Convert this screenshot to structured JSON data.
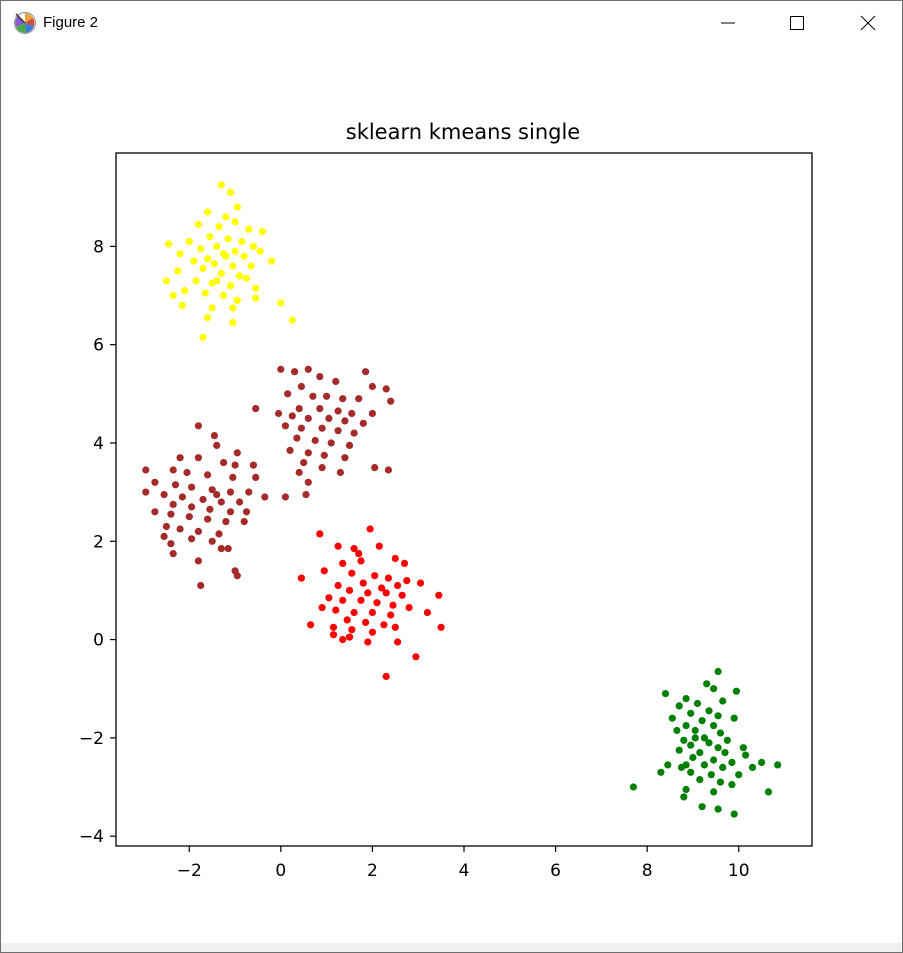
{
  "window": {
    "title": "Figure 2",
    "icons": {
      "app": "matplotlib-figure-icon",
      "minimize": "minimize-icon",
      "maximize": "maximize-icon",
      "close": "close-icon"
    }
  },
  "chart_data": {
    "type": "scatter",
    "title": "sklearn kmeans single",
    "xlabel": "",
    "ylabel": "",
    "xlim": [
      -3.6,
      11.6
    ],
    "ylim": [
      -4.2,
      9.9
    ],
    "xticks": [
      -2,
      0,
      2,
      4,
      6,
      8,
      10
    ],
    "xtick_labels": [
      "−2",
      "0",
      "2",
      "4",
      "6",
      "8",
      "10"
    ],
    "yticks": [
      -4,
      -2,
      0,
      2,
      4,
      6,
      8
    ],
    "ytick_labels": [
      "−4",
      "−2",
      "0",
      "2",
      "4",
      "6",
      "8"
    ],
    "grid": false,
    "legend": "none",
    "series": [
      {
        "color": "#ffff00",
        "points": [
          [
            -1.3,
            9.25
          ],
          [
            -1.1,
            9.1
          ],
          [
            -0.95,
            8.8
          ],
          [
            -1.6,
            8.7
          ],
          [
            -1.2,
            8.6
          ],
          [
            -1.0,
            8.5
          ],
          [
            -1.8,
            8.45
          ],
          [
            -1.35,
            8.4
          ],
          [
            -0.7,
            8.35
          ],
          [
            -0.4,
            8.3
          ],
          [
            -1.55,
            8.2
          ],
          [
            -1.15,
            8.15
          ],
          [
            -0.85,
            8.1
          ],
          [
            -2.0,
            8.1
          ],
          [
            -2.45,
            8.05
          ],
          [
            -1.4,
            8.0
          ],
          [
            -0.6,
            8.0
          ],
          [
            -1.75,
            7.95
          ],
          [
            -1.0,
            7.9
          ],
          [
            -0.45,
            7.9
          ],
          [
            -2.2,
            7.85
          ],
          [
            -1.25,
            7.85
          ],
          [
            -0.8,
            7.8
          ],
          [
            -1.6,
            7.75
          ],
          [
            -1.9,
            7.7
          ],
          [
            -0.2,
            7.7
          ],
          [
            -1.45,
            7.65
          ],
          [
            -1.05,
            7.6
          ],
          [
            -0.65,
            7.6
          ],
          [
            -1.7,
            7.55
          ],
          [
            -2.25,
            7.5
          ],
          [
            -1.3,
            7.45
          ],
          [
            -0.9,
            7.4
          ],
          [
            -2.5,
            7.3
          ],
          [
            -1.85,
            7.3
          ],
          [
            -1.5,
            7.25
          ],
          [
            -1.1,
            7.2
          ],
          [
            -0.55,
            7.15
          ],
          [
            -2.1,
            7.1
          ],
          [
            -1.65,
            7.05
          ],
          [
            -2.35,
            7.0
          ],
          [
            -1.25,
            7.0
          ],
          [
            -0.95,
            6.9
          ],
          [
            -0.55,
            6.95
          ],
          [
            0.0,
            6.85
          ],
          [
            -2.15,
            6.8
          ],
          [
            -1.5,
            6.75
          ],
          [
            -1.6,
            6.55
          ],
          [
            -1.05,
            6.75
          ],
          [
            -1.05,
            6.45
          ],
          [
            0.25,
            6.5
          ],
          [
            -1.7,
            6.15
          ],
          [
            -1.2,
            7.8
          ],
          [
            -1.4,
            7.3
          ],
          [
            -0.75,
            7.35
          ]
        ]
      },
      {
        "color": "#a52a2a",
        "points": [
          [
            0.0,
            5.5
          ],
          [
            0.3,
            5.45
          ],
          [
            0.6,
            5.5
          ],
          [
            0.85,
            5.35
          ],
          [
            1.2,
            5.25
          ],
          [
            1.85,
            5.45
          ],
          [
            2.0,
            5.15
          ],
          [
            2.3,
            5.1
          ],
          [
            0.45,
            5.15
          ],
          [
            0.15,
            5.0
          ],
          [
            0.7,
            4.95
          ],
          [
            1.0,
            4.95
          ],
          [
            1.35,
            4.9
          ],
          [
            1.7,
            4.9
          ],
          [
            2.4,
            4.85
          ],
          [
            -0.55,
            4.7
          ],
          [
            0.4,
            4.7
          ],
          [
            0.85,
            4.7
          ],
          [
            1.25,
            4.65
          ],
          [
            1.55,
            4.6
          ],
          [
            2.0,
            4.6
          ],
          [
            -0.05,
            4.6
          ],
          [
            0.25,
            4.55
          ],
          [
            0.6,
            4.5
          ],
          [
            1.05,
            4.5
          ],
          [
            1.4,
            4.45
          ],
          [
            1.8,
            4.4
          ],
          [
            0.1,
            4.35
          ],
          [
            0.45,
            4.3
          ],
          [
            0.9,
            4.3
          ],
          [
            1.25,
            4.25
          ],
          [
            1.6,
            4.2
          ],
          [
            0.35,
            4.1
          ],
          [
            0.75,
            4.05
          ],
          [
            1.1,
            4.0
          ],
          [
            1.5,
            3.95
          ],
          [
            0.2,
            3.85
          ],
          [
            0.6,
            3.8
          ],
          [
            0.95,
            3.75
          ],
          [
            1.4,
            3.7
          ],
          [
            0.5,
            3.6
          ],
          [
            0.9,
            3.5
          ],
          [
            0.4,
            3.4
          ],
          [
            1.3,
            3.4
          ],
          [
            2.05,
            3.5
          ],
          [
            2.35,
            3.45
          ],
          [
            0.6,
            3.2
          ],
          [
            0.55,
            2.95
          ],
          [
            0.1,
            2.9
          ],
          [
            -1.8,
            4.35
          ],
          [
            -1.45,
            4.15
          ],
          [
            -1.4,
            3.95
          ],
          [
            -0.95,
            3.8
          ],
          [
            -2.2,
            3.7
          ],
          [
            -1.8,
            3.7
          ],
          [
            -1.25,
            3.6
          ],
          [
            -1.0,
            3.55
          ],
          [
            -0.6,
            3.55
          ],
          [
            -2.95,
            3.45
          ],
          [
            -2.35,
            3.45
          ],
          [
            -2.05,
            3.4
          ],
          [
            -1.6,
            3.35
          ],
          [
            -1.05,
            3.3
          ],
          [
            -0.55,
            3.3
          ],
          [
            -2.75,
            3.2
          ],
          [
            -2.3,
            3.15
          ],
          [
            -1.95,
            3.1
          ],
          [
            -1.5,
            3.05
          ],
          [
            -1.1,
            3.0
          ],
          [
            -0.7,
            3.0
          ],
          [
            -2.95,
            3.0
          ],
          [
            -2.55,
            2.95
          ],
          [
            -2.15,
            2.9
          ],
          [
            -1.7,
            2.85
          ],
          [
            -1.3,
            2.8
          ],
          [
            -0.9,
            2.8
          ],
          [
            -0.35,
            2.9
          ],
          [
            -2.35,
            2.75
          ],
          [
            -1.95,
            2.7
          ],
          [
            -1.55,
            2.65
          ],
          [
            -1.1,
            2.6
          ],
          [
            -2.75,
            2.6
          ],
          [
            -2.4,
            2.55
          ],
          [
            -2.0,
            2.5
          ],
          [
            -1.6,
            2.45
          ],
          [
            -1.2,
            2.4
          ],
          [
            -0.8,
            2.4
          ],
          [
            -2.5,
            2.3
          ],
          [
            -2.2,
            2.25
          ],
          [
            -1.8,
            2.2
          ],
          [
            -1.35,
            2.15
          ],
          [
            -2.55,
            2.1
          ],
          [
            -1.95,
            2.05
          ],
          [
            -1.5,
            2.0
          ],
          [
            -2.4,
            1.95
          ],
          [
            -1.3,
            1.85
          ],
          [
            -1.15,
            1.85
          ],
          [
            -2.35,
            1.75
          ],
          [
            -1.8,
            1.6
          ],
          [
            -1.0,
            1.4
          ],
          [
            -0.95,
            1.3
          ],
          [
            -1.75,
            1.1
          ],
          [
            -0.75,
            2.6
          ],
          [
            -1.4,
            2.95
          ]
        ]
      },
      {
        "color": "#ff0000",
        "points": [
          [
            1.95,
            2.25
          ],
          [
            0.85,
            2.15
          ],
          [
            1.25,
            1.9
          ],
          [
            1.6,
            1.85
          ],
          [
            1.75,
            1.6
          ],
          [
            2.5,
            1.65
          ],
          [
            2.7,
            1.55
          ],
          [
            1.35,
            1.55
          ],
          [
            0.95,
            1.4
          ],
          [
            1.55,
            1.35
          ],
          [
            2.05,
            1.3
          ],
          [
            2.35,
            1.25
          ],
          [
            2.75,
            1.2
          ],
          [
            3.05,
            1.15
          ],
          [
            0.45,
            1.25
          ],
          [
            1.8,
            1.15
          ],
          [
            2.55,
            1.1
          ],
          [
            2.2,
            1.05
          ],
          [
            1.25,
            1.1
          ],
          [
            1.5,
            1.0
          ],
          [
            1.9,
            0.95
          ],
          [
            2.3,
            0.95
          ],
          [
            2.65,
            0.9
          ],
          [
            3.45,
            0.9
          ],
          [
            1.05,
            0.85
          ],
          [
            1.35,
            0.8
          ],
          [
            1.75,
            0.8
          ],
          [
            2.1,
            0.75
          ],
          [
            2.45,
            0.7
          ],
          [
            2.8,
            0.65
          ],
          [
            0.9,
            0.65
          ],
          [
            1.2,
            0.6
          ],
          [
            1.6,
            0.55
          ],
          [
            2.0,
            0.55
          ],
          [
            2.4,
            0.5
          ],
          [
            3.2,
            0.55
          ],
          [
            1.45,
            0.4
          ],
          [
            1.85,
            0.35
          ],
          [
            2.25,
            0.3
          ],
          [
            0.65,
            0.3
          ],
          [
            1.15,
            0.25
          ],
          [
            1.55,
            0.2
          ],
          [
            2.0,
            0.15
          ],
          [
            2.5,
            0.25
          ],
          [
            3.5,
            0.25
          ],
          [
            1.5,
            0.05
          ],
          [
            1.35,
            0.0
          ],
          [
            1.9,
            -0.05
          ],
          [
            2.55,
            -0.05
          ],
          [
            1.15,
            0.1
          ],
          [
            2.95,
            -0.35
          ],
          [
            2.3,
            -0.75
          ],
          [
            1.7,
            1.75
          ],
          [
            2.15,
            1.9
          ]
        ]
      },
      {
        "color": "#008000",
        "points": [
          [
            9.55,
            -0.65
          ],
          [
            9.3,
            -0.9
          ],
          [
            9.45,
            -1.0
          ],
          [
            9.95,
            -1.05
          ],
          [
            8.4,
            -1.1
          ],
          [
            8.85,
            -1.2
          ],
          [
            9.65,
            -1.25
          ],
          [
            9.1,
            -1.3
          ],
          [
            8.7,
            -1.35
          ],
          [
            9.35,
            -1.45
          ],
          [
            8.95,
            -1.5
          ],
          [
            9.55,
            -1.55
          ],
          [
            8.55,
            -1.6
          ],
          [
            9.2,
            -1.65
          ],
          [
            9.9,
            -1.6
          ],
          [
            8.85,
            -1.75
          ],
          [
            9.45,
            -1.75
          ],
          [
            9.05,
            -1.85
          ],
          [
            9.6,
            -1.9
          ],
          [
            8.65,
            -1.85
          ],
          [
            9.25,
            -2.0
          ],
          [
            9.75,
            -2.05
          ],
          [
            8.8,
            -2.05
          ],
          [
            9.35,
            -2.1
          ],
          [
            8.95,
            -2.15
          ],
          [
            9.55,
            -2.2
          ],
          [
            10.1,
            -2.2
          ],
          [
            8.7,
            -2.25
          ],
          [
            9.15,
            -2.3
          ],
          [
            9.7,
            -2.3
          ],
          [
            9.0,
            -2.4
          ],
          [
            9.45,
            -2.45
          ],
          [
            9.85,
            -2.5
          ],
          [
            10.5,
            -2.5
          ],
          [
            8.45,
            -2.55
          ],
          [
            8.85,
            -2.55
          ],
          [
            9.25,
            -2.55
          ],
          [
            9.65,
            -2.6
          ],
          [
            10.3,
            -2.6
          ],
          [
            10.85,
            -2.55
          ],
          [
            8.95,
            -2.7
          ],
          [
            9.4,
            -2.75
          ],
          [
            10.0,
            -2.75
          ],
          [
            8.3,
            -2.7
          ],
          [
            9.15,
            -2.85
          ],
          [
            9.6,
            -2.9
          ],
          [
            9.85,
            -2.95
          ],
          [
            8.85,
            -3.05
          ],
          [
            9.45,
            -3.1
          ],
          [
            8.8,
            -3.2
          ],
          [
            10.65,
            -3.1
          ],
          [
            9.2,
            -3.4
          ],
          [
            9.55,
            -3.45
          ],
          [
            9.9,
            -3.55
          ],
          [
            7.7,
            -3.0
          ],
          [
            10.15,
            -2.35
          ],
          [
            9.05,
            -2.0
          ],
          [
            8.75,
            -2.6
          ]
        ]
      }
    ]
  }
}
